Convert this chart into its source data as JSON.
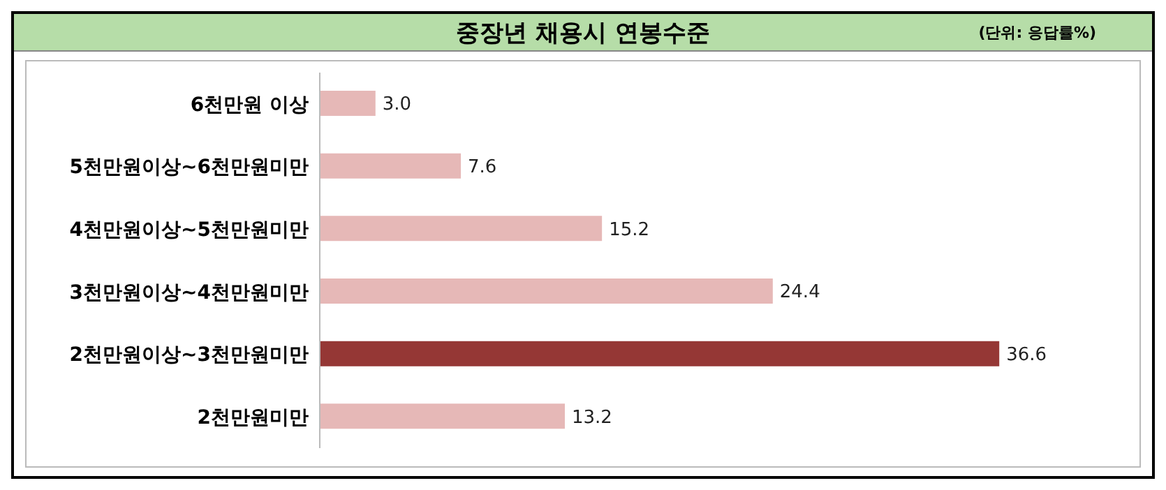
{
  "chart_data": {
    "type": "bar",
    "orientation": "horizontal",
    "title": "중장년 채용시 연봉수준",
    "subtitle": "(단위: 응답률%)",
    "categories": [
      "6천만원 이상",
      "5천만원이상~6천만원미만",
      "4천만원이상~5천만원미만",
      "3천만원이상~4천만원미만",
      "2천만원이상~3천만원미만",
      "2천만원미만"
    ],
    "values": [
      3.0,
      7.6,
      15.2,
      24.4,
      36.6,
      13.2
    ],
    "colors": [
      "#e6b8b7",
      "#e6b8b7",
      "#e6b8b7",
      "#e6b8b7",
      "#953735",
      "#e6b8b7"
    ],
    "value_labels": [
      "3.0",
      "7.6",
      "15.2",
      "24.4",
      "36.6",
      "13.2"
    ],
    "grid": false,
    "legend": false
  }
}
